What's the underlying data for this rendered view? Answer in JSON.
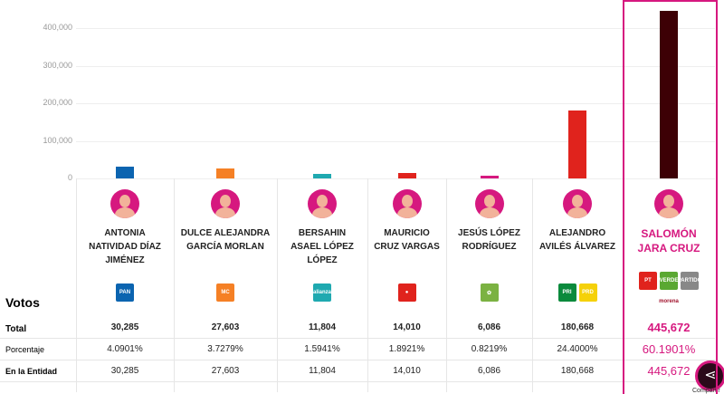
{
  "chart_data": {
    "type": "bar",
    "ylim": [
      0,
      450000
    ],
    "yticks": [
      "0",
      "100,000",
      "200,000",
      "300,000",
      "400,000"
    ],
    "ytick_values": [
      0,
      100000,
      200000,
      300000,
      400000
    ],
    "categories": [
      "ANTONIA NATIVIDAD DÍAZ JIMÉNEZ",
      "DULCE ALEJANDRA GARCÍA MORLAN",
      "BERSAHIN ASAEL LÓPEZ LÓPEZ",
      "MAURICIO CRUZ VARGAS",
      "JESÚS LÓPEZ RODRÍGUEZ",
      "ALEJANDRO AVILÉS ÁLVAREZ",
      "SALOMÓN JARA CRUZ"
    ],
    "values": [
      30285,
      27603,
      11804,
      14010,
      6086,
      180668,
      445672
    ],
    "colors": [
      "#0b64b0",
      "#f58025",
      "#1fa9b0",
      "#e0231d",
      "#d6187f",
      "#e0231d",
      "#3d0005"
    ]
  },
  "candidates": [
    {
      "name": "ANTONIA NATIVIDAD DÍAZ JIMÉNEZ",
      "parties": [
        {
          "label": "PAN",
          "color": "#0b64b0"
        }
      ],
      "total": "30,285",
      "pct": "4.0901%",
      "entidad": "30,285"
    },
    {
      "name": "DULCE ALEJANDRA GARCÍA MORLAN",
      "parties": [
        {
          "label": "MC",
          "color": "#f58025"
        }
      ],
      "total": "27,603",
      "pct": "3.7279%",
      "entidad": "27,603"
    },
    {
      "name": "BERSAHIN ASAEL LÓPEZ LÓPEZ",
      "parties": [
        {
          "label": "alianza",
          "color": "#1fa9b0"
        }
      ],
      "total": "11,804",
      "pct": "1.5941%",
      "entidad": "11,804"
    },
    {
      "name": "MAURICIO CRUZ VARGAS",
      "parties": [
        {
          "label": "●",
          "color": "#e0231d"
        }
      ],
      "total": "14,010",
      "pct": "1.8921%",
      "entidad": "14,010"
    },
    {
      "name": "JESÚS LÓPEZ RODRÍGUEZ",
      "parties": [
        {
          "label": "✿",
          "color": "#7bb242"
        }
      ],
      "total": "6,086",
      "pct": "0.8219%",
      "entidad": "6,086"
    },
    {
      "name": "ALEJANDRO AVILÉS ÁLVAREZ",
      "parties": [
        {
          "label": "PRI",
          "color": "#0a8a3c"
        },
        {
          "label": "PRD",
          "color": "#f5d10a"
        }
      ],
      "total": "180,668",
      "pct": "24.4000%",
      "entidad": "180,668"
    },
    {
      "name": "SALOMÓN JARA CRUZ",
      "parties": [
        {
          "label": "PT",
          "color": "#e0231d"
        },
        {
          "label": "VERDE",
          "color": "#5aa832"
        },
        {
          "label": "PARTIDO",
          "color": "#888"
        }
      ],
      "extra": "morena",
      "total": "445,672",
      "pct": "60.1901%",
      "entidad": "445,672"
    }
  ],
  "labels": {
    "votos": "Votos",
    "total": "Total",
    "porcentaje": "Porcentaje",
    "entidad": "En la Entidad",
    "share": "Compartir"
  },
  "highlight_color": "#d6187f"
}
